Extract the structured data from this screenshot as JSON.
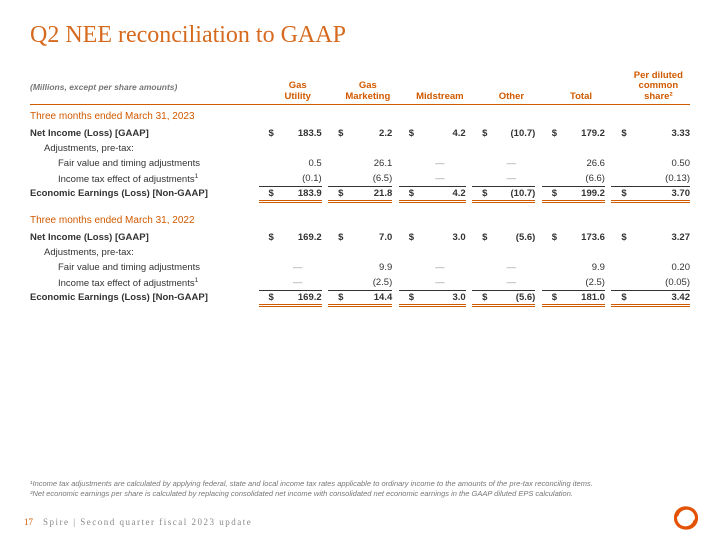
{
  "title": "Q2 NEE reconciliation to GAAP",
  "title_color": "#d66a1e",
  "accent": "#d05a00",
  "subtitle": "(Millions, except per share amounts)",
  "columns": [
    "Gas\nUtility",
    "Gas\nMarketing",
    "Midstream",
    "Other",
    "Total",
    "Per diluted\ncommon share²"
  ],
  "periods": [
    {
      "label": "Three months ended March 31, 2023",
      "rows": [
        {
          "label": "Net Income (Loss) [GAAP]",
          "bold": true,
          "sym": true,
          "vals": [
            "183.5",
            "2.2",
            "4.2",
            "(10.7)",
            "179.2",
            "3.33"
          ]
        },
        {
          "label": "Adjustments, pre-tax:",
          "indent": 1,
          "vals": [
            "",
            "",
            "",
            "",
            "",
            ""
          ]
        },
        {
          "label": "Fair value and timing adjustments",
          "indent": 2,
          "vals": [
            "0.5",
            "26.1",
            "—",
            "—",
            "26.6",
            "0.50"
          ]
        },
        {
          "label": "Income tax effect of adjustments¹",
          "indent": 2,
          "underline": true,
          "vals": [
            "(0.1)",
            "(6.5)",
            "—",
            "—",
            "(6.6)",
            "(0.13)"
          ]
        },
        {
          "label": "Economic Earnings (Loss) [Non-GAAP]",
          "bold": true,
          "sym": true,
          "total": true,
          "vals": [
            "183.9",
            "21.8",
            "4.2",
            "(10.7)",
            "199.2",
            "3.70"
          ]
        }
      ]
    },
    {
      "label": "Three months ended March 31, 2022",
      "rows": [
        {
          "label": "Net Income (Loss) [GAAP]",
          "bold": true,
          "sym": true,
          "vals": [
            "169.2",
            "7.0",
            "3.0",
            "(5.6)",
            "173.6",
            "3.27"
          ]
        },
        {
          "label": "Adjustments, pre-tax:",
          "indent": 1,
          "vals": [
            "",
            "",
            "",
            "",
            "",
            ""
          ]
        },
        {
          "label": "Fair value and timing adjustments",
          "indent": 2,
          "vals": [
            "—",
            "9.9",
            "—",
            "—",
            "9.9",
            "0.20"
          ]
        },
        {
          "label": "Income tax effect of adjustments¹",
          "indent": 2,
          "underline": true,
          "vals": [
            "—",
            "(2.5)",
            "—",
            "—",
            "(2.5)",
            "(0.05)"
          ]
        },
        {
          "label": "Economic Earnings (Loss) [Non-GAAP]",
          "bold": true,
          "sym": true,
          "total": true,
          "vals": [
            "169.2",
            "14.4",
            "3.0",
            "(5.6)",
            "181.0",
            "3.42"
          ]
        }
      ]
    }
  ],
  "footnotes": [
    "¹Income tax adjustments are calculated by applying federal, state and local income tax rates applicable to ordinary income to the amounts of the pre-tax reconciling items.",
    "²Net economic earnings per share is calculated by replacing consolidated net income with consolidated net economic earnings in the GAAP diluted EPS calculation."
  ],
  "footer": {
    "page": "17",
    "text": "Spire | Second quarter fiscal 2023 update"
  }
}
